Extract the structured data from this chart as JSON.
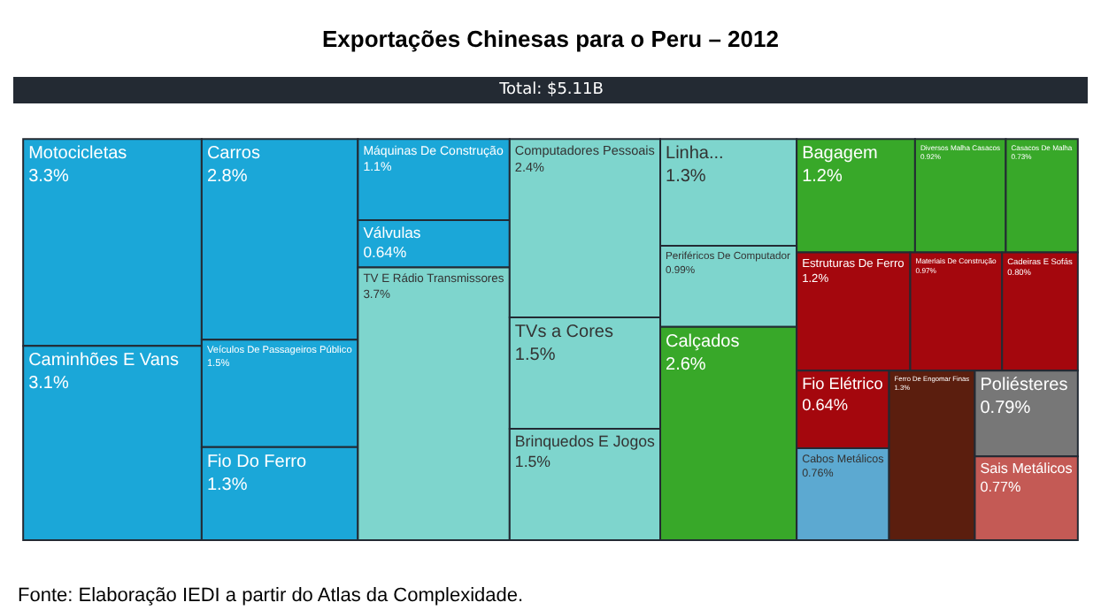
{
  "chart_data": {
    "type": "other",
    "title": "Exportações Chinesas para o Peru – 2012",
    "subtitle": "Total: $5.11B",
    "categories": [
      "Motocicletas",
      "Caminhões E Vans",
      "Carros",
      "Veículos De Passageiros Público",
      "Fio Do Ferro",
      "Máquinas De Construção",
      "Válvulas",
      "TV E Rádio Transmissores",
      "Computadores Pessoais",
      "TVs a Cores",
      "Brinquedos E Jogos",
      "Linha...",
      "Periféricos De Computador",
      "Calçados",
      "Bagagem",
      "Diversos Malha Casacos",
      "Casacos De Malha",
      "Estruturas De Ferro",
      "Materiais De Construção",
      "Cadeiras E Sofás",
      "Fio Elétrico",
      "Cabos Metálicos",
      "Ferro De Engomar Finas",
      "Poliésteres",
      "Sais Metálicos"
    ],
    "values": [
      3.3,
      3.1,
      2.8,
      1.5,
      1.3,
      1.1,
      0.64,
      3.7,
      2.4,
      1.5,
      1.5,
      1.3,
      0.99,
      2.6,
      1.2,
      0.92,
      0.73,
      1.2,
      0.97,
      0.8,
      0.64,
      0.76,
      1.3,
      0.79,
      0.77
    ],
    "value_labels": [
      "3.3%",
      "3.1%",
      "2.8%",
      "1.5%",
      "1.3%",
      "1.1%",
      "0.64%",
      "3.7%",
      "2.4%",
      "1.5%",
      "1.5%",
      "1.3%",
      "0.99%",
      "2.6%",
      "1.2%",
      "0.92%",
      "0.73%",
      "1.2%",
      "0.97%",
      "0.80%",
      "0.64%",
      "0.76%",
      "1.3%",
      "0.79%",
      "0.77%"
    ],
    "colors": [
      "#1ba7d8",
      "#1ba7d8",
      "#1ba7d8",
      "#1ba7d8",
      "#1ba7d8",
      "#1ba7d8",
      "#1ba7d8",
      "#7ed5cd",
      "#7ed5cd",
      "#7ed5cd",
      "#7ed5cd",
      "#7ed5cd",
      "#7ed5cd",
      "#38a829",
      "#38a829",
      "#38a829",
      "#38a829",
      "#a4070d",
      "#a4070d",
      "#a4070d",
      "#a4070d",
      "#5ca9d1",
      "#5b1e0e",
      "#777777",
      "#c45a55"
    ],
    "annotations": [
      "Fonte: Elaboração IEDI a partir do Atlas da Complexidade."
    ]
  }
}
